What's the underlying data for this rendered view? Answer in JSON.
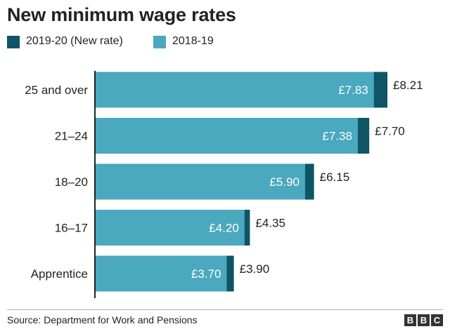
{
  "colors": {
    "new_rate": "#0f5566",
    "prev_rate": "#4aa8bf",
    "axis": "#222222",
    "inner_label": "#ffffff"
  },
  "legend": [
    {
      "label": "2019-20 (New rate)",
      "color": "#0f5566"
    },
    {
      "label": "2018-19",
      "color": "#4aa8bf"
    }
  ],
  "chart_data": {
    "type": "bar",
    "orientation": "horizontal",
    "stacked_overlay": true,
    "title": "New minimum wage rates",
    "categories": [
      "25 and over",
      "21–24",
      "18–20",
      "16–17",
      "Apprentice"
    ],
    "series": [
      {
        "name": "2019-20 (New rate)",
        "values": [
          8.21,
          7.7,
          6.15,
          4.35,
          3.9
        ],
        "labels": [
          "£8.21",
          "£7.70",
          "£6.15",
          "£4.35",
          "£3.90"
        ]
      },
      {
        "name": "2018-19",
        "values": [
          7.83,
          7.38,
          5.9,
          4.2,
          3.7
        ],
        "labels": [
          "£7.83",
          "£7.38",
          "£5.90",
          "£4.20",
          "£3.70"
        ]
      }
    ],
    "xlim": [
      0,
      8.21
    ],
    "grid": false,
    "legend_position": "top-left"
  },
  "footer": {
    "source": "Source: Department for Work and Pensions",
    "logo_letters": [
      "B",
      "B",
      "C"
    ]
  }
}
